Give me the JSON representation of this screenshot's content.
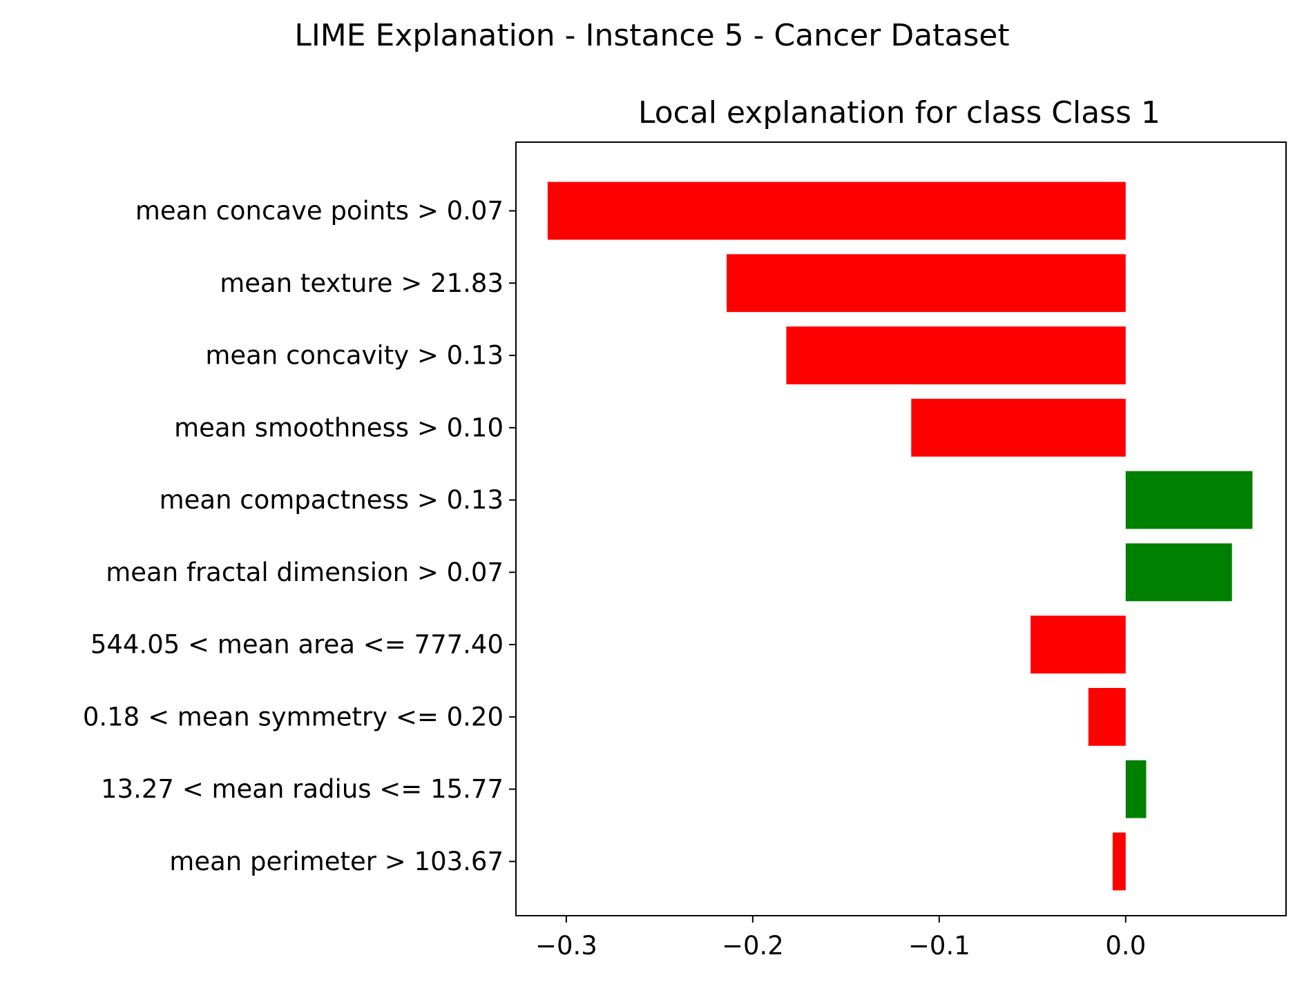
{
  "chart_data": {
    "type": "bar",
    "orientation": "horizontal",
    "suptitle": "LIME Explanation - Instance 5 - Cancer Dataset",
    "title": "Local explanation for class Class 1",
    "xlabel": "",
    "ylabel": "",
    "xlim": [
      -0.327,
      0.086
    ],
    "xticks": [
      -0.3,
      -0.2,
      -0.1,
      0.0
    ],
    "xtick_labels": [
      "−0.3",
      "−0.2",
      "−0.1",
      "0.0"
    ],
    "grid": false,
    "legend": "none",
    "categories": [
      "mean concave points > 0.07",
      "mean texture > 21.83",
      "mean concavity > 0.13",
      "mean smoothness > 0.10",
      "mean compactness > 0.13",
      "mean fractal dimension > 0.07",
      "544.05 < mean area <= 777.40",
      "0.18 < mean symmetry <= 0.20",
      "13.27 < mean radius <= 15.77",
      "mean perimeter > 103.67"
    ],
    "values": [
      -0.31,
      -0.214,
      -0.182,
      -0.115,
      0.068,
      0.057,
      -0.051,
      -0.02,
      0.011,
      -0.007
    ],
    "colors": {
      "positive": "#008000",
      "negative": "#ff0000",
      "axes": "#000000"
    }
  }
}
